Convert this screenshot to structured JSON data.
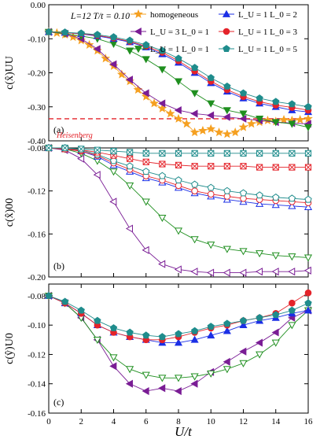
{
  "figure": {
    "params_text": "L=12   T/t = 0.10",
    "xlabel": "U/t",
    "x_ticks": [
      "0",
      "2",
      "4",
      "6",
      "8",
      "10",
      "12",
      "14",
      "16"
    ],
    "heisenberg_label": "Heisenberg",
    "heisenberg_value": -0.335,
    "legend": [
      {
        "label": "homogeneous",
        "key": "homog"
      },
      {
        "label": "L_U = 1 L_0 = 2",
        "key": "l1l2"
      },
      {
        "label": "L_U = 3 L_0 = 1",
        "key": "l3l1"
      },
      {
        "label": "L_U = 1 L_0 = 3",
        "key": "l1l3"
      },
      {
        "label": "L_U = 1 L_0 = 1",
        "key": "l1l1"
      },
      {
        "label": "L_U = 1 L_0 = 5",
        "key": "l1l5"
      }
    ]
  },
  "colors": {
    "homog": "#f5a021",
    "l1l2": "#1b2fe6",
    "l3l1": "#7a1d95",
    "l1l3": "#e4232a",
    "l1l1": "#1f8f1f",
    "l1l5": "#1f8c8c",
    "heisenberg": "#e4232a"
  },
  "chart_data": [
    {
      "type": "line",
      "panel_label": "(a)",
      "ylabel": "c(x̂)UU",
      "ylim": [
        -0.4,
        0.0
      ],
      "xlim": [
        0,
        16
      ],
      "y_ticks": [
        "0.00",
        "-0.10",
        "-0.20",
        "-0.30",
        "-0.40"
      ],
      "series": [
        {
          "name": "homogeneous",
          "key": "homog",
          "marker": "star",
          "filled": true,
          "x": [
            0,
            0.5,
            1,
            1.5,
            2,
            2.5,
            3,
            3.5,
            4,
            4.5,
            5,
            5.5,
            6,
            6.5,
            7,
            7.5,
            8,
            8.5,
            9,
            9.5,
            10,
            10.5,
            11,
            11.5,
            12,
            12.5,
            13,
            13.5,
            14,
            14.5,
            15,
            15.5,
            16
          ],
          "y": [
            -0.08,
            -0.083,
            -0.088,
            -0.095,
            -0.105,
            -0.118,
            -0.135,
            -0.158,
            -0.18,
            -0.205,
            -0.225,
            -0.25,
            -0.27,
            -0.29,
            -0.305,
            -0.32,
            -0.335,
            -0.35,
            -0.375,
            -0.37,
            -0.365,
            -0.375,
            -0.38,
            -0.375,
            -0.36,
            -0.35,
            -0.345,
            -0.34,
            -0.343,
            -0.338,
            -0.34,
            -0.338,
            -0.335
          ]
        },
        {
          "name": "L_U = 3 L_0 = 1",
          "key": "l3l1",
          "marker": "tri-left",
          "filled": true,
          "x": [
            0,
            1,
            2,
            3,
            4,
            5,
            6,
            7,
            8,
            9,
            10,
            11,
            12,
            13,
            14,
            15,
            16
          ],
          "y": [
            -0.08,
            -0.085,
            -0.1,
            -0.13,
            -0.175,
            -0.22,
            -0.26,
            -0.29,
            -0.31,
            -0.32,
            -0.325,
            -0.33,
            -0.335,
            -0.34,
            -0.345,
            -0.348,
            -0.35
          ]
        },
        {
          "name": "L_U = 1 L_0 = 1",
          "key": "l1l1",
          "marker": "tri-down",
          "filled": true,
          "x": [
            0,
            1,
            2,
            3,
            4,
            5,
            6,
            7,
            8,
            9,
            10,
            11,
            12,
            13,
            14,
            15,
            16
          ],
          "y": [
            -0.08,
            -0.085,
            -0.092,
            -0.1,
            -0.115,
            -0.135,
            -0.16,
            -0.19,
            -0.225,
            -0.26,
            -0.29,
            -0.31,
            -0.32,
            -0.335,
            -0.345,
            -0.35,
            -0.36
          ]
        },
        {
          "name": "L_U = 1 L_0 = 2",
          "key": "l1l2",
          "marker": "tri-up",
          "filled": true,
          "x": [
            0,
            1,
            2,
            3,
            4,
            5,
            6,
            7,
            8,
            9,
            10,
            11,
            12,
            13,
            14,
            15,
            16
          ],
          "y": [
            -0.08,
            -0.082,
            -0.086,
            -0.092,
            -0.1,
            -0.11,
            -0.125,
            -0.145,
            -0.17,
            -0.2,
            -0.23,
            -0.255,
            -0.275,
            -0.29,
            -0.3,
            -0.31,
            -0.315
          ]
        },
        {
          "name": "L_U = 1 L_0 = 3",
          "key": "l1l3",
          "marker": "circle",
          "filled": true,
          "x": [
            0,
            1,
            2,
            3,
            4,
            5,
            6,
            7,
            8,
            9,
            10,
            11,
            12,
            13,
            14,
            15,
            16
          ],
          "y": [
            -0.08,
            -0.082,
            -0.085,
            -0.09,
            -0.098,
            -0.108,
            -0.122,
            -0.14,
            -0.165,
            -0.195,
            -0.225,
            -0.25,
            -0.27,
            -0.285,
            -0.295,
            -0.302,
            -0.31
          ]
        },
        {
          "name": "L_U = 1 L_0 = 5",
          "key": "l1l5",
          "marker": "pentagon",
          "filled": true,
          "x": [
            0,
            1,
            2,
            3,
            4,
            5,
            6,
            7,
            8,
            9,
            10,
            11,
            12,
            13,
            14,
            15,
            16
          ],
          "y": [
            -0.08,
            -0.081,
            -0.084,
            -0.088,
            -0.095,
            -0.105,
            -0.118,
            -0.135,
            -0.158,
            -0.185,
            -0.215,
            -0.24,
            -0.26,
            -0.275,
            -0.285,
            -0.292,
            -0.3
          ]
        }
      ]
    },
    {
      "type": "line",
      "panel_label": "(b)",
      "ylabel": "c(x̂)00",
      "ylim": [
        -0.2,
        -0.08
      ],
      "xlim": [
        0,
        16
      ],
      "y_ticks": [
        "-0.08",
        "-0.12",
        "-0.16",
        "-0.20"
      ],
      "series": [
        {
          "name": "L_U = 3 L_0 = 1",
          "key": "l3l1",
          "marker": "tri-left",
          "filled": false,
          "x": [
            0,
            1,
            2,
            3,
            4,
            5,
            6,
            7,
            8,
            9,
            10,
            11,
            12,
            13,
            14,
            15,
            16
          ],
          "y": [
            -0.08,
            -0.082,
            -0.09,
            -0.105,
            -0.13,
            -0.155,
            -0.175,
            -0.188,
            -0.193,
            -0.195,
            -0.196,
            -0.196,
            -0.196,
            -0.195,
            -0.195,
            -0.195,
            -0.194
          ]
        },
        {
          "name": "L_U = 1 L_0 = 1",
          "key": "l1l1",
          "marker": "tri-down",
          "filled": false,
          "x": [
            0,
            1,
            2,
            3,
            4,
            5,
            6,
            7,
            8,
            9,
            10,
            11,
            12,
            13,
            14,
            15,
            16
          ],
          "y": [
            -0.08,
            -0.081,
            -0.085,
            -0.092,
            -0.102,
            -0.115,
            -0.13,
            -0.145,
            -0.157,
            -0.165,
            -0.17,
            -0.174,
            -0.176,
            -0.178,
            -0.18,
            -0.181,
            -0.182
          ]
        },
        {
          "name": "L_U = 1 L_0 = 2",
          "key": "l1l2",
          "marker": "tri-up",
          "filled": false,
          "x": [
            0,
            1,
            2,
            3,
            4,
            5,
            6,
            7,
            8,
            9,
            10,
            11,
            12,
            13,
            14,
            15,
            16
          ],
          "y": [
            -0.08,
            -0.081,
            -0.083,
            -0.088,
            -0.096,
            -0.102,
            -0.108,
            -0.112,
            -0.117,
            -0.122,
            -0.125,
            -0.128,
            -0.13,
            -0.132,
            -0.133,
            -0.134,
            -0.135
          ]
        },
        {
          "name": "L_U = 1 L_0 = 3",
          "key": "l1l3",
          "marker": "circle",
          "filled": false,
          "x": [
            0,
            1,
            2,
            3,
            4,
            5,
            6,
            7,
            8,
            9,
            10,
            11,
            12,
            13,
            14,
            15,
            16
          ],
          "y": [
            -0.08,
            -0.081,
            -0.083,
            -0.087,
            -0.094,
            -0.1,
            -0.106,
            -0.11,
            -0.115,
            -0.12,
            -0.123,
            -0.125,
            -0.127,
            -0.128,
            -0.129,
            -0.13,
            -0.131
          ]
        },
        {
          "name": "L_U = 1 L_0 = 5",
          "key": "l1l5",
          "marker": "pentagon",
          "filled": false,
          "x": [
            0,
            1,
            2,
            3,
            4,
            5,
            6,
            7,
            8,
            9,
            10,
            11,
            12,
            13,
            14,
            15,
            16
          ],
          "y": [
            -0.08,
            -0.08,
            -0.082,
            -0.086,
            -0.092,
            -0.097,
            -0.102,
            -0.106,
            -0.11,
            -0.114,
            -0.117,
            -0.12,
            -0.122,
            -0.124,
            -0.126,
            -0.127,
            -0.128
          ]
        },
        {
          "name": "red crossed squares",
          "key": "l1l3",
          "marker": "xsquare",
          "filled": false,
          "x": [
            0,
            1,
            2,
            3,
            4,
            5,
            6,
            7,
            8,
            9,
            10,
            11,
            12,
            13,
            14,
            15,
            16
          ],
          "y": [
            -0.08,
            -0.081,
            -0.082,
            -0.084,
            -0.087,
            -0.09,
            -0.093,
            -0.095,
            -0.096,
            -0.097,
            -0.097,
            -0.097,
            -0.097,
            -0.098,
            -0.098,
            -0.098,
            -0.098
          ]
        },
        {
          "name": "teal crossed squares",
          "key": "l1l5",
          "marker": "xsquare",
          "filled": false,
          "x": [
            0,
            1,
            2,
            3,
            4,
            5,
            6,
            7,
            8,
            9,
            10,
            11,
            12,
            13,
            14,
            15,
            16
          ],
          "y": [
            -0.08,
            -0.08,
            -0.081,
            -0.082,
            -0.083,
            -0.084,
            -0.085,
            -0.085,
            -0.085,
            -0.085,
            -0.085,
            -0.085,
            -0.085,
            -0.085,
            -0.085,
            -0.085,
            -0.085
          ]
        }
      ]
    },
    {
      "type": "line",
      "panel_label": "(c)",
      "ylabel": "c(ŷ)U0",
      "ylim": [
        -0.16,
        -0.072
      ],
      "xlim": [
        0,
        16
      ],
      "y_ticks": [
        "-0.08",
        "-0.10",
        "-0.12",
        "-0.14",
        "-0.16"
      ],
      "series": [
        {
          "name": "L_U = 3 L_0 = 1",
          "key": "l3l1",
          "marker": "tri-left",
          "filled": true,
          "x": [
            0,
            1,
            2,
            3,
            4,
            5,
            6,
            7,
            8,
            9,
            10,
            11,
            12,
            13,
            14,
            15,
            16
          ],
          "y": [
            -0.08,
            -0.085,
            -0.095,
            -0.11,
            -0.128,
            -0.14,
            -0.145,
            -0.143,
            -0.145,
            -0.14,
            -0.132,
            -0.125,
            -0.118,
            -0.112,
            -0.105,
            -0.095,
            -0.09
          ]
        },
        {
          "name": "L_U = 1 L_0 = 1",
          "key": "l1l1",
          "marker": "tri-down",
          "filled": false,
          "x": [
            0,
            1,
            2,
            3,
            4,
            5,
            6,
            7,
            8,
            9,
            10,
            11,
            12,
            13,
            14,
            15,
            16
          ],
          "y": [
            -0.08,
            -0.085,
            -0.095,
            -0.11,
            -0.122,
            -0.13,
            -0.134,
            -0.136,
            -0.136,
            -0.135,
            -0.133,
            -0.13,
            -0.126,
            -0.12,
            -0.112,
            -0.1,
            -0.09
          ]
        },
        {
          "name": "L_U = 1 L_0 = 2",
          "key": "l1l2",
          "marker": "tri-up",
          "filled": true,
          "x": [
            0,
            1,
            2,
            3,
            4,
            5,
            6,
            7,
            8,
            9,
            10,
            11,
            12,
            13,
            14,
            15,
            16
          ],
          "y": [
            -0.08,
            -0.085,
            -0.092,
            -0.1,
            -0.105,
            -0.108,
            -0.11,
            -0.112,
            -0.112,
            -0.11,
            -0.107,
            -0.104,
            -0.1,
            -0.097,
            -0.095,
            -0.092,
            -0.09
          ]
        },
        {
          "name": "L_U = 1 L_0 = 3",
          "key": "l1l3",
          "marker": "circle",
          "filled": true,
          "x": [
            0,
            1,
            2,
            3,
            4,
            5,
            6,
            7,
            8,
            9,
            10,
            11,
            12,
            13,
            14,
            15,
            16
          ],
          "y": [
            -0.08,
            -0.085,
            -0.092,
            -0.1,
            -0.105,
            -0.108,
            -0.11,
            -0.11,
            -0.108,
            -0.105,
            -0.102,
            -0.1,
            -0.097,
            -0.095,
            -0.092,
            -0.085,
            -0.078
          ]
        },
        {
          "name": "L_U = 1 L_0 = 5",
          "key": "l1l5",
          "marker": "pentagon",
          "filled": true,
          "x": [
            0,
            1,
            2,
            3,
            4,
            5,
            6,
            7,
            8,
            9,
            10,
            11,
            12,
            13,
            14,
            15,
            16
          ],
          "y": [
            -0.08,
            -0.084,
            -0.09,
            -0.097,
            -0.102,
            -0.105,
            -0.107,
            -0.108,
            -0.106,
            -0.104,
            -0.101,
            -0.099,
            -0.097,
            -0.095,
            -0.093,
            -0.09,
            -0.085
          ]
        }
      ]
    }
  ]
}
